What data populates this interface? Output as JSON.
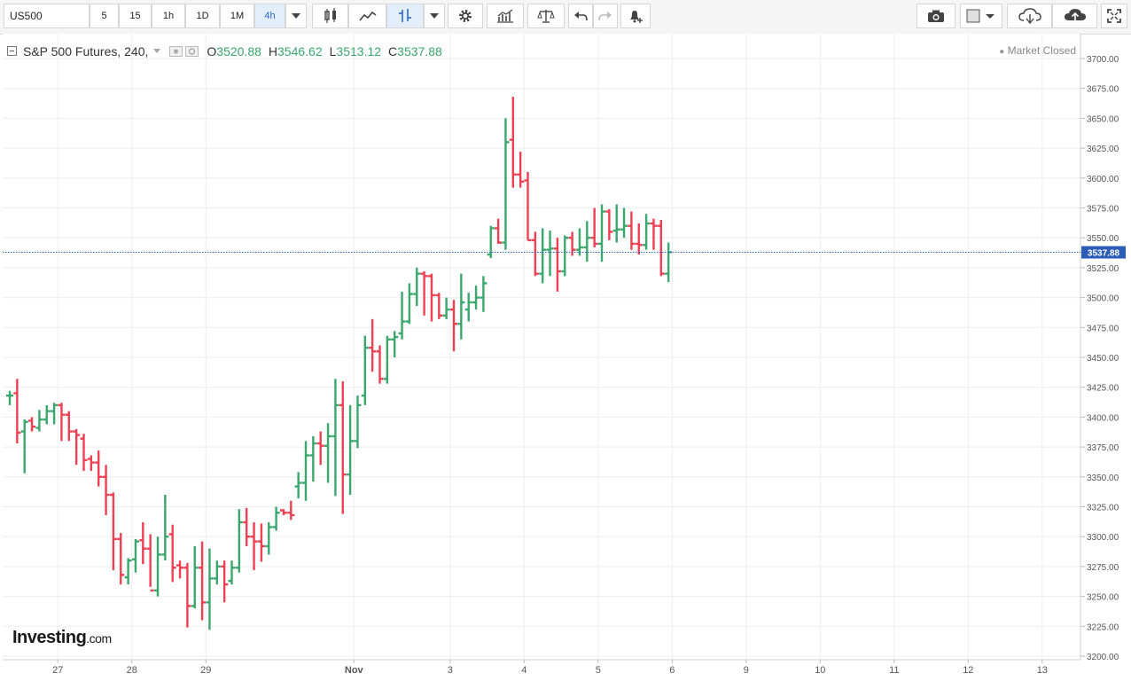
{
  "toolbar": {
    "symbol": "US500",
    "intervals": [
      "5",
      "15",
      "1h",
      "1D",
      "1M",
      "4h"
    ],
    "active_interval": "4h"
  },
  "legend": {
    "title": "S&P 500 Futures, 240,",
    "o_label": "O",
    "open": "3520.88",
    "h_label": "H",
    "high": "3546.62",
    "l_label": "L",
    "low": "3513.12",
    "c_label": "C",
    "close": "3537.88"
  },
  "status": "Market Closed",
  "logo": {
    "main": "Investing",
    "suffix": ".com"
  },
  "colors": {
    "up": "#3aa76d",
    "down": "#ee4052",
    "price_line": "#2c5eb8",
    "grid": "#eeeeee"
  },
  "chart_data": {
    "type": "ohlc",
    "ylim": [
      3200,
      3710
    ],
    "yticks": [
      "3200.00",
      "3225.00",
      "3250.00",
      "3275.00",
      "3300.00",
      "3325.00",
      "3350.00",
      "3375.00",
      "3400.00",
      "3425.00",
      "3450.00",
      "3475.00",
      "3500.00",
      "3525.00",
      "3550.00",
      "3575.00",
      "3600.00",
      "3625.00",
      "3650.00",
      "3675.00",
      "3700.00"
    ],
    "xticks": [
      {
        "label": "27",
        "bar": 6.5
      },
      {
        "label": "28",
        "bar": 16.5
      },
      {
        "label": "29",
        "bar": 26.5
      },
      {
        "label": "Nov",
        "bar": 46.5
      },
      {
        "label": "3",
        "bar": 59.5
      },
      {
        "label": "4",
        "bar": 69.5
      },
      {
        "label": "5",
        "bar": 79.5
      },
      {
        "label": "6",
        "bar": 89.5
      },
      {
        "label": "9",
        "bar": 99.5
      },
      {
        "label": "10",
        "bar": 109.5
      },
      {
        "label": "11",
        "bar": 119.5
      },
      {
        "label": "12",
        "bar": 129.5
      },
      {
        "label": "13",
        "bar": 139.5
      }
    ],
    "last_price": 3537.88,
    "bars": [
      {
        "o": 3418,
        "h": 3422,
        "l": 3410,
        "c": 3418
      },
      {
        "o": 3420,
        "h": 3432,
        "l": 3378,
        "c": 3387
      },
      {
        "o": 3388,
        "h": 3398,
        "l": 3353,
        "c": 3396
      },
      {
        "o": 3397,
        "h": 3400,
        "l": 3388,
        "c": 3392
      },
      {
        "o": 3391,
        "h": 3406,
        "l": 3388,
        "c": 3398
      },
      {
        "o": 3398,
        "h": 3410,
        "l": 3394,
        "c": 3405
      },
      {
        "o": 3405,
        "h": 3412,
        "l": 3394,
        "c": 3410
      },
      {
        "o": 3410,
        "h": 3412,
        "l": 3380,
        "c": 3402
      },
      {
        "o": 3402,
        "h": 3405,
        "l": 3380,
        "c": 3388
      },
      {
        "o": 3388,
        "h": 3390,
        "l": 3360,
        "c": 3385
      },
      {
        "o": 3382,
        "h": 3386,
        "l": 3355,
        "c": 3364
      },
      {
        "o": 3365,
        "h": 3368,
        "l": 3355,
        "c": 3362
      },
      {
        "o": 3362,
        "h": 3372,
        "l": 3342,
        "c": 3350
      },
      {
        "o": 3350,
        "h": 3360,
        "l": 3318,
        "c": 3335
      },
      {
        "o": 3335,
        "h": 3337,
        "l": 3272,
        "c": 3298
      },
      {
        "o": 3298,
        "h": 3303,
        "l": 3260,
        "c": 3268
      },
      {
        "o": 3266,
        "h": 3282,
        "l": 3260,
        "c": 3280
      },
      {
        "o": 3281,
        "h": 3298,
        "l": 3270,
        "c": 3296
      },
      {
        "o": 3297,
        "h": 3312,
        "l": 3277,
        "c": 3290
      },
      {
        "o": 3290,
        "h": 3302,
        "l": 3258,
        "c": 3255
      },
      {
        "o": 3255,
        "h": 3300,
        "l": 3250,
        "c": 3285
      },
      {
        "o": 3285,
        "h": 3335,
        "l": 3280,
        "c": 3300
      },
      {
        "o": 3302,
        "h": 3310,
        "l": 3262,
        "c": 3274
      },
      {
        "o": 3276,
        "h": 3280,
        "l": 3265,
        "c": 3274
      },
      {
        "o": 3274,
        "h": 3278,
        "l": 3224,
        "c": 3242
      },
      {
        "o": 3242,
        "h": 3292,
        "l": 3240,
        "c": 3274
      },
      {
        "o": 3274,
        "h": 3296,
        "l": 3230,
        "c": 3245
      },
      {
        "o": 3245,
        "h": 3290,
        "l": 3222,
        "c": 3265
      },
      {
        "o": 3265,
        "h": 3280,
        "l": 3260,
        "c": 3275
      },
      {
        "o": 3275,
        "h": 3280,
        "l": 3245,
        "c": 3260
      },
      {
        "o": 3263,
        "h": 3280,
        "l": 3260,
        "c": 3274
      },
      {
        "o": 3274,
        "h": 3323,
        "l": 3270,
        "c": 3312
      },
      {
        "o": 3312,
        "h": 3324,
        "l": 3292,
        "c": 3300
      },
      {
        "o": 3300,
        "h": 3312,
        "l": 3272,
        "c": 3296
      },
      {
        "o": 3296,
        "h": 3311,
        "l": 3279,
        "c": 3292
      },
      {
        "o": 3292,
        "h": 3312,
        "l": 3285,
        "c": 3308
      },
      {
        "o": 3308,
        "h": 3325,
        "l": 3305,
        "c": 3320
      },
      {
        "o": 3322,
        "h": 3323,
        "l": 3318,
        "c": 3320
      },
      {
        "o": 3320,
        "h": 3330,
        "l": 3314,
        "c": 3318
      },
      {
        "o": 3342,
        "h": 3354,
        "l": 3332,
        "c": 3345
      },
      {
        "o": 3345,
        "h": 3380,
        "l": 3330,
        "c": 3368
      },
      {
        "o": 3368,
        "h": 3384,
        "l": 3346,
        "c": 3378
      },
      {
        "o": 3378,
        "h": 3388,
        "l": 3360,
        "c": 3376
      },
      {
        "o": 3376,
        "h": 3395,
        "l": 3345,
        "c": 3384
      },
      {
        "o": 3384,
        "h": 3432,
        "l": 3334,
        "c": 3410
      },
      {
        "o": 3410,
        "h": 3430,
        "l": 3319,
        "c": 3352
      },
      {
        "o": 3352,
        "h": 3410,
        "l": 3335,
        "c": 3380
      },
      {
        "o": 3380,
        "h": 3418,
        "l": 3374,
        "c": 3410
      },
      {
        "o": 3418,
        "h": 3468,
        "l": 3410,
        "c": 3458
      },
      {
        "o": 3458,
        "h": 3482,
        "l": 3438,
        "c": 3455
      },
      {
        "o": 3455,
        "h": 3460,
        "l": 3428,
        "c": 3432
      },
      {
        "o": 3432,
        "h": 3468,
        "l": 3428,
        "c": 3465
      },
      {
        "o": 3465,
        "h": 3472,
        "l": 3450,
        "c": 3467
      },
      {
        "o": 3470,
        "h": 3505,
        "l": 3465,
        "c": 3480
      },
      {
        "o": 3480,
        "h": 3512,
        "l": 3478,
        "c": 3503
      },
      {
        "o": 3503,
        "h": 3525,
        "l": 3493,
        "c": 3520
      },
      {
        "o": 3520,
        "h": 3522,
        "l": 3485,
        "c": 3518
      },
      {
        "o": 3518,
        "h": 3520,
        "l": 3480,
        "c": 3502
      },
      {
        "o": 3502,
        "h": 3504,
        "l": 3482,
        "c": 3485
      },
      {
        "o": 3485,
        "h": 3500,
        "l": 3482,
        "c": 3490
      },
      {
        "o": 3490,
        "h": 3498,
        "l": 3455,
        "c": 3478
      },
      {
        "o": 3478,
        "h": 3520,
        "l": 3465,
        "c": 3496
      },
      {
        "o": 3490,
        "h": 3504,
        "l": 3480,
        "c": 3496
      },
      {
        "o": 3496,
        "h": 3510,
        "l": 3490,
        "c": 3500
      },
      {
        "o": 3500,
        "h": 3518,
        "l": 3488,
        "c": 3512
      },
      {
        "o": 3536,
        "h": 3560,
        "l": 3533,
        "c": 3558
      },
      {
        "o": 3558,
        "h": 3566,
        "l": 3545,
        "c": 3546
      },
      {
        "o": 3546,
        "h": 3650,
        "l": 3540,
        "c": 3630
      },
      {
        "o": 3632,
        "h": 3668,
        "l": 3592,
        "c": 3603
      },
      {
        "o": 3603,
        "h": 3622,
        "l": 3592,
        "c": 3597
      },
      {
        "o": 3598,
        "h": 3605,
        "l": 3548,
        "c": 3548
      },
      {
        "o": 3548,
        "h": 3555,
        "l": 3518,
        "c": 3520
      },
      {
        "o": 3520,
        "h": 3558,
        "l": 3512,
        "c": 3540
      },
      {
        "o": 3540,
        "h": 3556,
        "l": 3518,
        "c": 3541
      },
      {
        "o": 3541,
        "h": 3550,
        "l": 3505,
        "c": 3522
      },
      {
        "o": 3522,
        "h": 3552,
        "l": 3518,
        "c": 3550
      },
      {
        "o": 3550,
        "h": 3555,
        "l": 3535,
        "c": 3540
      },
      {
        "o": 3540,
        "h": 3558,
        "l": 3535,
        "c": 3542
      },
      {
        "o": 3542,
        "h": 3564,
        "l": 3530,
        "c": 3550
      },
      {
        "o": 3550,
        "h": 3575,
        "l": 3542,
        "c": 3545
      },
      {
        "o": 3545,
        "h": 3578,
        "l": 3530,
        "c": 3572
      },
      {
        "o": 3572,
        "h": 3574,
        "l": 3548,
        "c": 3555
      },
      {
        "o": 3556,
        "h": 3578,
        "l": 3546,
        "c": 3557
      },
      {
        "o": 3557,
        "h": 3575,
        "l": 3550,
        "c": 3560
      },
      {
        "o": 3560,
        "h": 3572,
        "l": 3540,
        "c": 3545
      },
      {
        "o": 3545,
        "h": 3562,
        "l": 3536,
        "c": 3544
      },
      {
        "o": 3544,
        "h": 3570,
        "l": 3540,
        "c": 3562
      },
      {
        "o": 3562,
        "h": 3566,
        "l": 3540,
        "c": 3560
      },
      {
        "o": 3560,
        "h": 3565,
        "l": 3518,
        "c": 3520
      },
      {
        "o": 3520,
        "h": 3546,
        "l": 3513,
        "c": 3538
      }
    ]
  }
}
